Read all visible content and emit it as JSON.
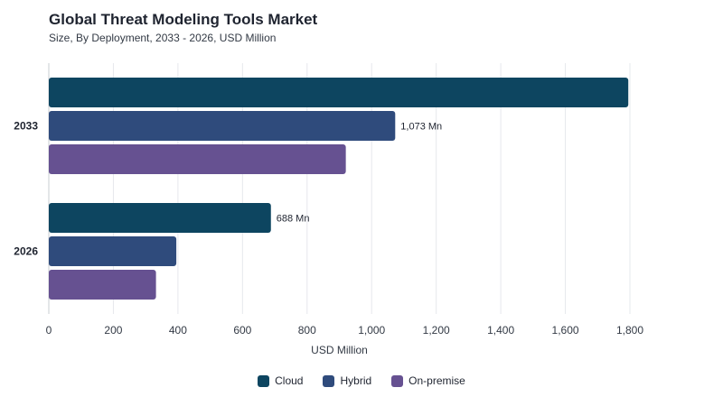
{
  "chart_data": {
    "type": "bar",
    "orientation": "horizontal",
    "title": "Global Threat Modeling Tools Market",
    "subtitle": "Size, By Deployment, 2033 - 2026, USD Million",
    "xlabel": "USD Million",
    "ylabel": "",
    "xlim": [
      0,
      1800
    ],
    "xticks": [
      0,
      200,
      400,
      600,
      800,
      1000,
      1200,
      1400,
      1600,
      1800
    ],
    "xtick_labels": [
      "0",
      "200",
      "400",
      "600",
      "800",
      "1,000",
      "1,200",
      "1,400",
      "1,600",
      "1,800"
    ],
    "categories": [
      "2033",
      "2026"
    ],
    "series": [
      {
        "name": "Cloud",
        "color": "#0d4560",
        "values": [
          1795,
          688
        ],
        "labels": [
          "",
          "688 Mn"
        ]
      },
      {
        "name": "Hybrid",
        "color": "#2f4b7c",
        "values": [
          1073,
          395
        ],
        "labels": [
          "1,073 Mn",
          ""
        ]
      },
      {
        "name": "On-premise",
        "color": "#665191",
        "values": [
          920,
          332
        ],
        "labels": [
          "",
          ""
        ]
      }
    ],
    "grid": true,
    "legend_position": "bottom"
  }
}
